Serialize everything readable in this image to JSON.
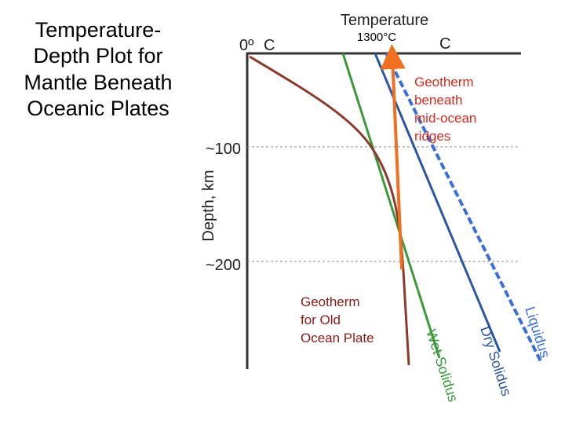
{
  "slide": {
    "title_lines": [
      "Temperature-",
      "Depth Plot for",
      "Mantle Beneath",
      "Oceanic Plates"
    ]
  },
  "axes": {
    "temperature_title": "Temperature",
    "temp_zero": "0º",
    "temp_zero_unit": "C",
    "temp_mark": "1300°C",
    "temp_right_unit": "C",
    "depth_title": "Depth, km",
    "depth_100": "~100",
    "depth_200": "~200"
  },
  "curves": {
    "ridge_geotherm": "Geotherm beneath mid-ocean ridges",
    "ridge_geotherm_lines": [
      "Geotherm",
      "beneath",
      "mid-ocean",
      "ridges"
    ],
    "old_geotherm": "Geotherm for Old Ocean Plate",
    "old_geotherm_lines": [
      "Geotherm",
      "for Old",
      "Ocean Plate"
    ],
    "wet_solidus": "Wet Solidus",
    "dry_solidus": "Dry Solidus",
    "liquidus": "Liquidus"
  },
  "colors": {
    "old_geotherm": "#8b3a2e",
    "wet_solidus": "#3a9a3a",
    "dry_solidus": "#2c56a0",
    "liquidus": "#3a6fd8",
    "ridge_geotherm": "#f07020",
    "gridline": "#888888",
    "axis": "#333333"
  }
}
